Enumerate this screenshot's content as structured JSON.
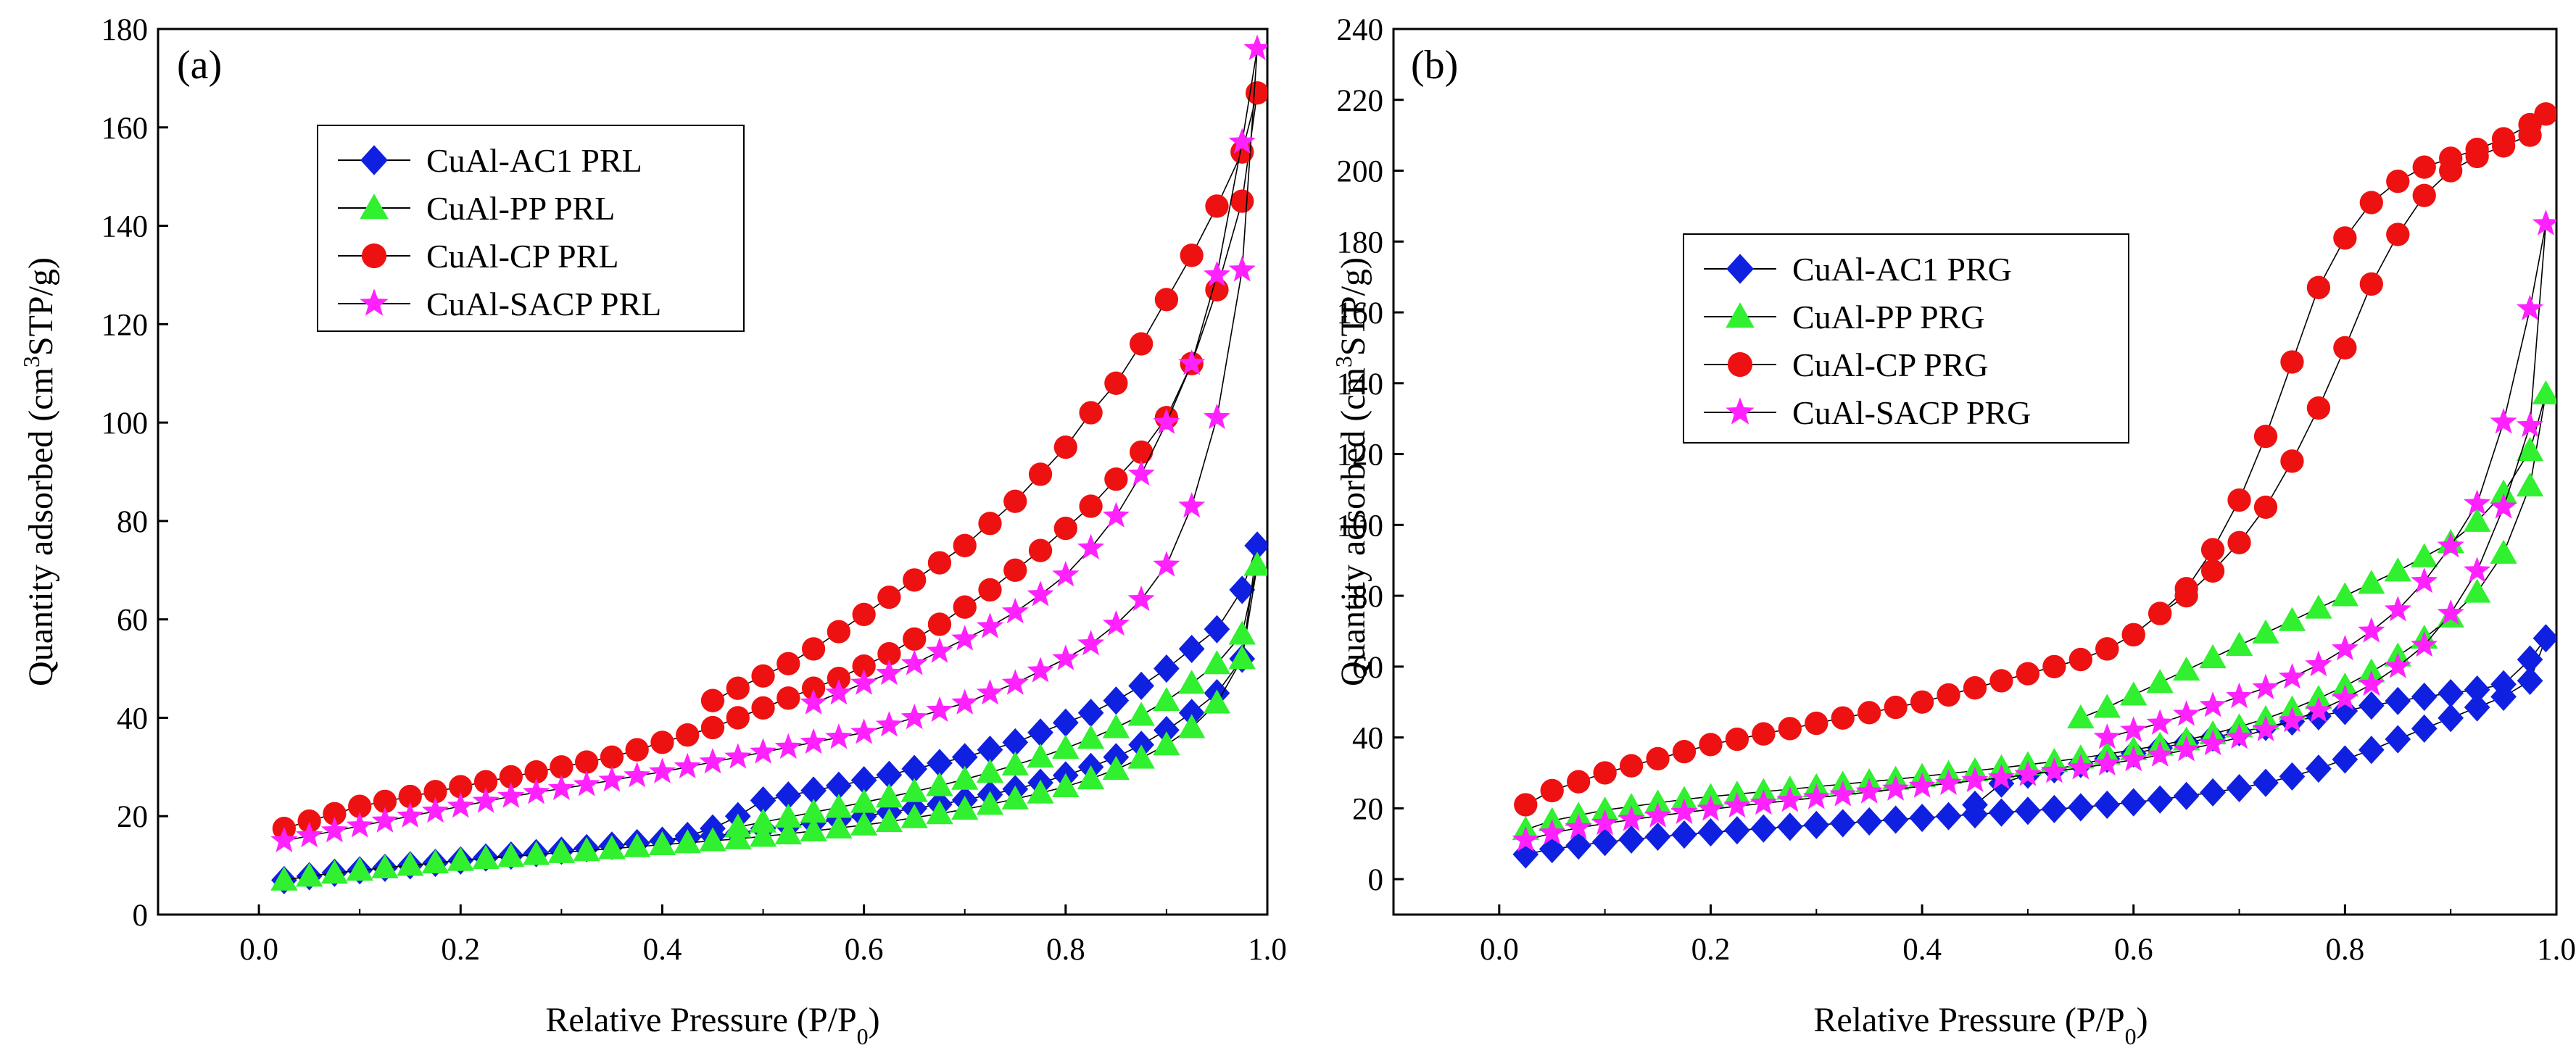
{
  "figure": {
    "panels": [
      "(a)",
      "(b)"
    ]
  },
  "chart_data": [
    {
      "type": "scatter",
      "panel_label": "(a)",
      "title": "",
      "xlabel": "Relative Pressure (P/P0)",
      "ylabel": "Quantity adsorbed (cm3STP/g)",
      "xlim": [
        -0.1,
        1.0
      ],
      "ylim": [
        0,
        180
      ],
      "x_ticks": [
        "0.0",
        "0.2",
        "0.4",
        "0.6",
        "0.8",
        "1.0"
      ],
      "y_ticks": [
        "0",
        "20",
        "40",
        "60",
        "80",
        "100",
        "120",
        "140",
        "160",
        "180"
      ],
      "legend_position": "upper-left",
      "series": [
        {
          "name": "CuAl-AC1 PRL",
          "marker": "diamond",
          "color": "#1020e0",
          "x": [
            0.025,
            0.05,
            0.075,
            0.1,
            0.125,
            0.15,
            0.175,
            0.2,
            0.225,
            0.25,
            0.275,
            0.3,
            0.325,
            0.35,
            0.375,
            0.4,
            0.425,
            0.45,
            0.475,
            0.5,
            0.525,
            0.55,
            0.575,
            0.6,
            0.625,
            0.65,
            0.675,
            0.7,
            0.725,
            0.75,
            0.775,
            0.8,
            0.825,
            0.85,
            0.875,
            0.9,
            0.925,
            0.95,
            0.975,
            0.99,
            0.975,
            0.95,
            0.925,
            0.9,
            0.875,
            0.85,
            0.825,
            0.8,
            0.775,
            0.75,
            0.725,
            0.7,
            0.675,
            0.65,
            0.625,
            0.6,
            0.575,
            0.55,
            0.525,
            0.5,
            0.475,
            0.45,
            0.425,
            0.4,
            0.375,
            0.35
          ],
          "y": [
            7,
            7.8,
            8.5,
            9,
            9.5,
            10,
            10.5,
            11,
            11.6,
            12,
            12.5,
            13,
            13.5,
            14,
            14.5,
            15,
            15.5,
            16,
            16.5,
            17.5,
            18,
            18.6,
            19.3,
            20,
            20.8,
            21.6,
            22.4,
            23.3,
            24.4,
            25.5,
            26.8,
            28.3,
            30,
            32,
            34.5,
            37.5,
            41,
            45,
            52,
            75,
            66,
            58,
            54,
            50,
            46.5,
            43.5,
            41,
            39,
            37,
            35,
            33.5,
            32,
            30.8,
            29.6,
            28.4,
            27.3,
            26.2,
            25.2,
            24.2,
            23.2,
            20,
            17.5,
            16,
            15,
            14.5,
            14
          ]
        },
        {
          "name": "CuAl-PP PRL",
          "marker": "triangle",
          "color": "#30f030",
          "x": [
            0.025,
            0.05,
            0.075,
            0.1,
            0.125,
            0.15,
            0.175,
            0.2,
            0.225,
            0.25,
            0.275,
            0.3,
            0.325,
            0.35,
            0.375,
            0.4,
            0.425,
            0.45,
            0.475,
            0.5,
            0.525,
            0.55,
            0.575,
            0.6,
            0.625,
            0.65,
            0.675,
            0.7,
            0.725,
            0.75,
            0.775,
            0.8,
            0.825,
            0.85,
            0.875,
            0.9,
            0.925,
            0.95,
            0.975,
            0.99,
            0.975,
            0.95,
            0.925,
            0.9,
            0.875,
            0.85,
            0.825,
            0.8,
            0.775,
            0.75,
            0.725,
            0.7,
            0.675,
            0.65,
            0.625,
            0.6,
            0.575,
            0.55,
            0.525,
            0.5,
            0.475
          ],
          "y": [
            7,
            7.8,
            8.4,
            9,
            9.5,
            10,
            10.5,
            11,
            11.4,
            11.8,
            12.2,
            12.6,
            13,
            13.4,
            13.8,
            14.2,
            14.6,
            15,
            15.4,
            15.9,
            16.4,
            17,
            17.6,
            18.2,
            18.9,
            19.7,
            20.5,
            21.4,
            22.4,
            23.5,
            24.7,
            26,
            27.6,
            29.5,
            31.8,
            34.5,
            38,
            43,
            52,
            71,
            57,
            51,
            47,
            43.5,
            40.5,
            38,
            35.8,
            33.8,
            32,
            30.4,
            28.9,
            27.5,
            26.2,
            25,
            23.9,
            22.8,
            21.8,
            20.8,
            19.8,
            18.8,
            17.8
          ]
        },
        {
          "name": "CuAl-CP PRL",
          "marker": "circle",
          "color": "#ee1111",
          "x": [
            0.025,
            0.05,
            0.075,
            0.1,
            0.125,
            0.15,
            0.175,
            0.2,
            0.225,
            0.25,
            0.275,
            0.3,
            0.325,
            0.35,
            0.375,
            0.4,
            0.425,
            0.45,
            0.475,
            0.5,
            0.525,
            0.55,
            0.575,
            0.6,
            0.625,
            0.65,
            0.675,
            0.7,
            0.725,
            0.75,
            0.775,
            0.8,
            0.825,
            0.85,
            0.875,
            0.9,
            0.925,
            0.95,
            0.975,
            0.99,
            0.975,
            0.95,
            0.925,
            0.9,
            0.875,
            0.85,
            0.825,
            0.8,
            0.775,
            0.75,
            0.725,
            0.7,
            0.675,
            0.65,
            0.625,
            0.6,
            0.575,
            0.55,
            0.525,
            0.5,
            0.475,
            0.45
          ],
          "y": [
            17.5,
            19,
            20.5,
            22,
            23,
            24,
            25,
            26,
            27,
            28,
            29,
            30,
            31,
            32,
            33.5,
            35,
            36.5,
            38,
            40,
            42,
            44,
            46,
            48,
            50.5,
            53,
            56,
            59,
            62.5,
            66,
            70,
            74,
            78.5,
            83,
            88.5,
            94,
            101,
            112,
            127,
            145,
            167,
            155,
            144,
            134,
            125,
            116,
            108,
            102,
            95,
            89.5,
            84,
            79.5,
            75,
            71.5,
            68,
            64.5,
            61,
            57.5,
            54,
            51,
            48.5,
            46,
            43.5
          ]
        },
        {
          "name": "CuAl-SACP PRL",
          "marker": "star",
          "color": "#ff22ff",
          "x": [
            0.025,
            0.05,
            0.075,
            0.1,
            0.125,
            0.15,
            0.175,
            0.2,
            0.225,
            0.25,
            0.275,
            0.3,
            0.325,
            0.35,
            0.375,
            0.4,
            0.425,
            0.45,
            0.475,
            0.5,
            0.525,
            0.55,
            0.575,
            0.6,
            0.625,
            0.65,
            0.675,
            0.7,
            0.725,
            0.75,
            0.775,
            0.8,
            0.825,
            0.85,
            0.875,
            0.9,
            0.925,
            0.95,
            0.975,
            0.99,
            0.975,
            0.95,
            0.925,
            0.9,
            0.875,
            0.85,
            0.825,
            0.8,
            0.775,
            0.75,
            0.725,
            0.7,
            0.675,
            0.65,
            0.625,
            0.6,
            0.575,
            0.55
          ],
          "y": [
            15,
            16,
            17,
            18,
            19,
            20,
            21,
            22,
            23,
            24,
            24.8,
            25.6,
            26.4,
            27.3,
            28.2,
            29,
            30,
            31,
            32,
            33,
            34,
            35,
            36,
            37,
            38.5,
            40,
            41.5,
            43,
            45,
            47,
            49.5,
            52,
            55,
            59,
            64,
            71,
            83,
            101,
            131,
            176,
            157,
            130,
            112,
            100,
            89.5,
            81,
            74.5,
            69,
            65,
            61.5,
            58.5,
            56,
            53.5,
            51,
            49,
            47,
            45,
            43
          ]
        }
      ]
    },
    {
      "type": "scatter",
      "panel_label": "(b)",
      "title": "",
      "xlabel": "Relative Pressure (P/P0)",
      "ylabel": "Quantity adsorbed (cm3STP/g)",
      "xlim": [
        -0.1,
        1.0
      ],
      "ylim": [
        -10,
        240
      ],
      "x_ticks": [
        "0.0",
        "0.2",
        "0.4",
        "0.6",
        "0.8",
        "1.0"
      ],
      "y_ticks": [
        "0",
        "20",
        "40",
        "60",
        "80",
        "100",
        "120",
        "140",
        "160",
        "180",
        "200",
        "220",
        "240"
      ],
      "legend_position": "upper-left",
      "series": [
        {
          "name": "CuAl-AC1 PRG",
          "marker": "diamond",
          "color": "#1020e0",
          "x": [
            0.025,
            0.05,
            0.075,
            0.1,
            0.125,
            0.15,
            0.175,
            0.2,
            0.225,
            0.25,
            0.275,
            0.3,
            0.325,
            0.35,
            0.375,
            0.4,
            0.425,
            0.45,
            0.475,
            0.5,
            0.525,
            0.55,
            0.575,
            0.6,
            0.625,
            0.65,
            0.675,
            0.7,
            0.725,
            0.75,
            0.775,
            0.8,
            0.825,
            0.85,
            0.875,
            0.9,
            0.925,
            0.95,
            0.975,
            0.99,
            0.975,
            0.95,
            0.925,
            0.9,
            0.875,
            0.85,
            0.825,
            0.8,
            0.775,
            0.75,
            0.725,
            0.7,
            0.675,
            0.65,
            0.625,
            0.6,
            0.575,
            0.55,
            0.525,
            0.5,
            0.475,
            0.45
          ],
          "y": [
            7,
            8.5,
            9.5,
            10.5,
            11.2,
            12,
            12.6,
            13.2,
            13.8,
            14.3,
            14.8,
            15.3,
            15.8,
            16.3,
            16.8,
            17.3,
            17.8,
            18.3,
            18.8,
            19.3,
            19.8,
            20.3,
            21,
            21.7,
            22.5,
            23.5,
            24.5,
            25.7,
            27.2,
            29,
            31.2,
            33.8,
            36.5,
            39.5,
            42.5,
            45.5,
            48.5,
            51.5,
            56,
            68,
            62,
            55,
            53.5,
            52.5,
            51.5,
            50.3,
            49,
            47.5,
            46,
            44.5,
            43,
            41.5,
            40,
            38.5,
            37,
            35.5,
            34,
            32.5,
            31,
            29.5,
            27,
            21
          ]
        },
        {
          "name": "CuAl-PP PRG",
          "marker": "triangle",
          "color": "#30f030",
          "x": [
            0.025,
            0.05,
            0.075,
            0.1,
            0.125,
            0.15,
            0.175,
            0.2,
            0.225,
            0.25,
            0.275,
            0.3,
            0.325,
            0.35,
            0.375,
            0.4,
            0.425,
            0.45,
            0.475,
            0.5,
            0.525,
            0.55,
            0.575,
            0.6,
            0.625,
            0.65,
            0.675,
            0.7,
            0.725,
            0.75,
            0.775,
            0.8,
            0.825,
            0.85,
            0.875,
            0.9,
            0.925,
            0.95,
            0.975,
            0.99,
            0.975,
            0.95,
            0.925,
            0.9,
            0.875,
            0.85,
            0.825,
            0.8,
            0.775,
            0.75,
            0.725,
            0.7,
            0.675,
            0.65,
            0.625,
            0.6,
            0.575,
            0.55
          ],
          "y": [
            14,
            16.5,
            18,
            19.5,
            20.5,
            21.5,
            22.5,
            23.3,
            24,
            24.7,
            25.4,
            26.1,
            26.8,
            27.5,
            28.2,
            29,
            29.8,
            30.6,
            31.4,
            32.3,
            33.2,
            34.2,
            35.3,
            36.5,
            37.8,
            39.3,
            41,
            43,
            45.3,
            48,
            51,
            54.5,
            58.5,
            63,
            68,
            74,
            81,
            92,
            111,
            137,
            121,
            109,
            101,
            95,
            91,
            87,
            83.5,
            80,
            76.5,
            73,
            69.5,
            66,
            62.5,
            59,
            55.5,
            52,
            48.5,
            45.5
          ]
        },
        {
          "name": "CuAl-CP PRG",
          "marker": "circle",
          "color": "#ee1111",
          "x": [
            0.025,
            0.05,
            0.075,
            0.1,
            0.125,
            0.15,
            0.175,
            0.2,
            0.225,
            0.25,
            0.275,
            0.3,
            0.325,
            0.35,
            0.375,
            0.4,
            0.425,
            0.45,
            0.475,
            0.5,
            0.525,
            0.55,
            0.575,
            0.6,
            0.625,
            0.65,
            0.675,
            0.7,
            0.725,
            0.75,
            0.775,
            0.8,
            0.825,
            0.85,
            0.875,
            0.9,
            0.925,
            0.95,
            0.975,
            0.99,
            0.975,
            0.95,
            0.925,
            0.9,
            0.875,
            0.85,
            0.825,
            0.8,
            0.775,
            0.75,
            0.725,
            0.7,
            0.675,
            0.65,
            0.625,
            0.6,
            0.575
          ],
          "y": [
            21,
            25,
            27.5,
            30,
            32,
            34,
            36,
            38,
            39.5,
            41,
            42.5,
            44,
            45.5,
            47,
            48.5,
            50,
            52,
            54,
            56,
            58,
            60,
            62,
            65,
            69,
            75,
            80,
            87,
            95,
            105,
            118,
            133,
            150,
            168,
            182,
            193,
            200,
            204,
            207,
            210,
            216,
            213,
            209,
            206,
            203.5,
            201,
            197,
            191,
            181,
            167,
            146,
            125,
            107,
            93,
            82,
            75,
            69,
            65
          ]
        },
        {
          "name": "CuAl-SACP PRG",
          "marker": "star",
          "color": "#ff22ff",
          "x": [
            0.025,
            0.05,
            0.075,
            0.1,
            0.125,
            0.15,
            0.175,
            0.2,
            0.225,
            0.25,
            0.275,
            0.3,
            0.325,
            0.35,
            0.375,
            0.4,
            0.425,
            0.45,
            0.475,
            0.5,
            0.525,
            0.55,
            0.575,
            0.6,
            0.625,
            0.65,
            0.675,
            0.7,
            0.725,
            0.75,
            0.775,
            0.8,
            0.825,
            0.85,
            0.875,
            0.9,
            0.925,
            0.95,
            0.975,
            0.99,
            0.975,
            0.95,
            0.925,
            0.9,
            0.875,
            0.85,
            0.825,
            0.8,
            0.775,
            0.75,
            0.725,
            0.7,
            0.675,
            0.65,
            0.625,
            0.6,
            0.575
          ],
          "y": [
            11,
            13,
            14.5,
            15.7,
            16.8,
            17.8,
            18.8,
            19.7,
            20.6,
            21.4,
            22.2,
            23,
            23.8,
            24.6,
            25.4,
            26.2,
            27,
            27.8,
            28.6,
            29.5,
            30.4,
            31.4,
            32.5,
            33.7,
            35,
            36.5,
            38.2,
            40,
            42.2,
            44.7,
            47.5,
            51,
            55,
            60,
            66,
            75,
            87,
            105,
            128,
            185,
            161,
            129,
            106,
            94,
            84,
            76,
            70,
            65,
            60.5,
            57,
            54,
            51.5,
            49,
            46.5,
            44,
            42,
            40
          ]
        }
      ]
    }
  ]
}
